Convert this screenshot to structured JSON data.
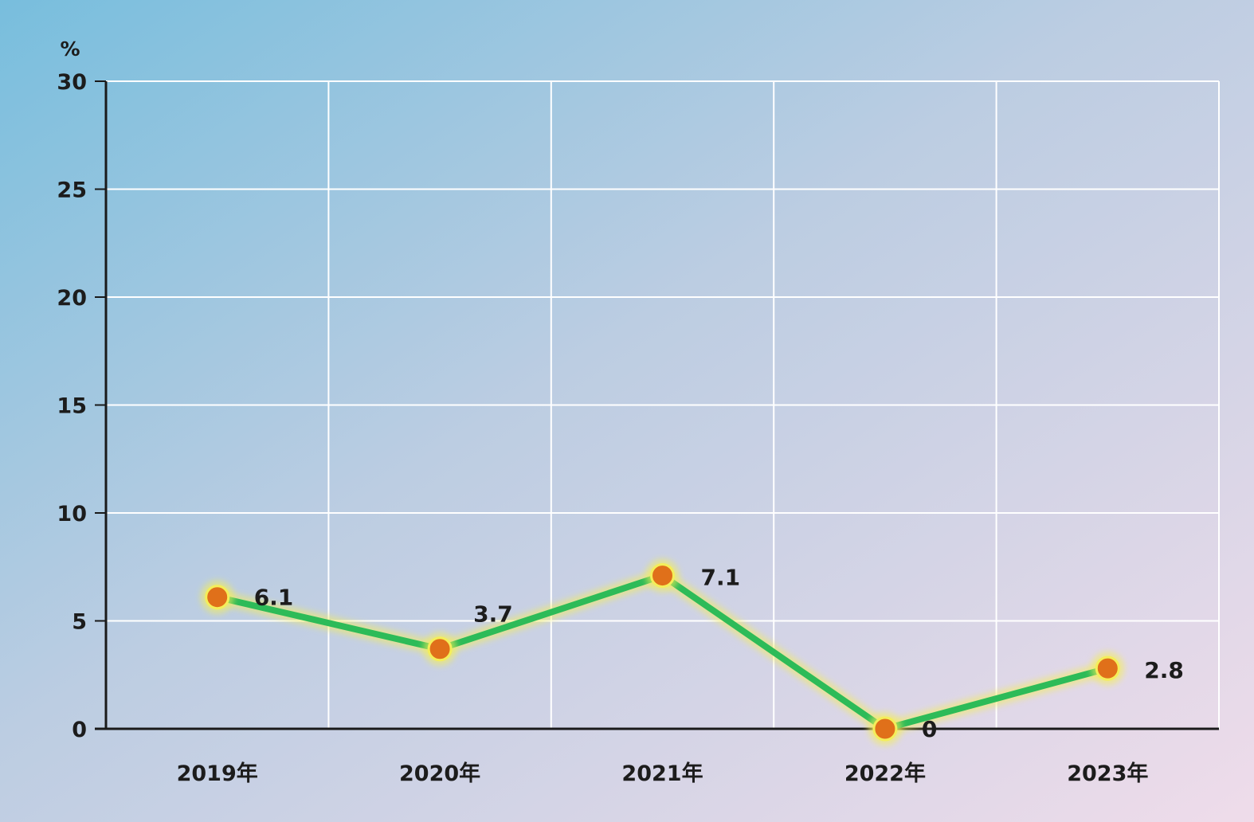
{
  "chart_data": {
    "type": "line",
    "title": "",
    "xlabel": "",
    "ylabel": "%",
    "ylim": [
      0,
      30
    ],
    "yticks": [
      0,
      5,
      10,
      15,
      20,
      25,
      30
    ],
    "categories": [
      "2019年",
      "2020年",
      "2021年",
      "2022年",
      "2023年"
    ],
    "series": [
      {
        "values": [
          6.1,
          3.7,
          7.1,
          0,
          2.8
        ],
        "labels": [
          "6.1",
          "3.7",
          "7.1",
          "0",
          "2.8"
        ]
      }
    ],
    "grid": true,
    "legend": "none",
    "colors": {
      "line": "#2dbb58",
      "line_glow": "#f4ee5a",
      "marker": "#e0701a",
      "axis": "#1a1a1a",
      "grid": "#ffffff",
      "text": "#1c1c1c",
      "background_top_left": "#78bedd",
      "background_bottom_right": "#efdcea"
    }
  }
}
